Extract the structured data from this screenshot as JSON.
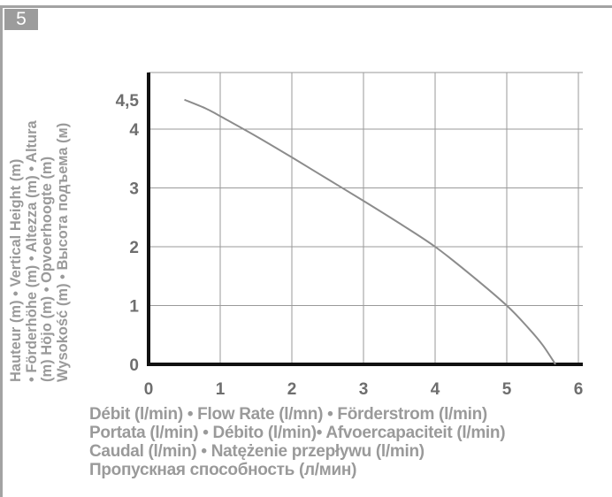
{
  "figure_number": "5",
  "chart_data": {
    "type": "line",
    "ylabel_lines": [
      "Hauteur (m) • Vertical Height (m)",
      "• Förderhöhe (m) • Altezza (m) • Altura",
      "(m) Höjo (m)   • Opvoerhoogte (m)",
      "Wysokość (m) • Высота подъема (м)"
    ],
    "xlabel_lines": [
      "Débit (l/min) • Flow Rate (l/mn) • Förderstrom (l/min)",
      "Portata (l/min) • Débito (l/min)• Afvoercapaciteit (l/min)",
      "Caudal (l/min) • Natężenie przepływu (l/min)",
      "Пропускная способность (л/мин)"
    ],
    "x_ticks": [
      "0",
      "1",
      "2",
      "3",
      "4",
      "5",
      "6"
    ],
    "y_ticks": [
      {
        "value": 0,
        "label": "0"
      },
      {
        "value": 1,
        "label": "1"
      },
      {
        "value": 2,
        "label": "2"
      },
      {
        "value": 3,
        "label": "3"
      },
      {
        "value": 4,
        "label": "4"
      },
      {
        "value": 4.5,
        "label": "4,5"
      }
    ],
    "xlim": [
      0,
      6
    ],
    "ylim": [
      0,
      5
    ],
    "grid": true,
    "series": [
      {
        "color": "#8c8c8c",
        "x": [
          0.5,
          0.8,
          1.0,
          1.5,
          2.0,
          2.5,
          3.0,
          3.5,
          4.0,
          4.5,
          5.0,
          5.3,
          5.5,
          5.68
        ],
        "y": [
          4.5,
          4.35,
          4.22,
          3.88,
          3.52,
          3.15,
          2.78,
          2.4,
          2.0,
          1.52,
          1.0,
          0.62,
          0.33,
          0.0
        ]
      }
    ]
  }
}
